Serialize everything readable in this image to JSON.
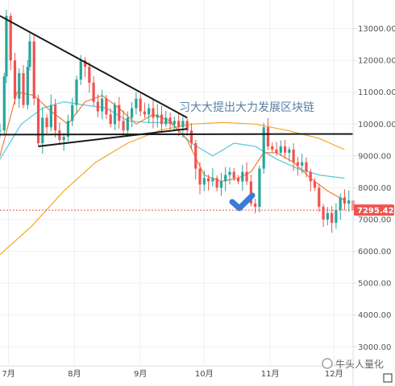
{
  "chart_data": {
    "type": "candlestick",
    "title": "",
    "xlabel": "",
    "ylabel": "",
    "ylim": [
      2400,
      13900
    ],
    "y_ticks": [
      "13000.00",
      "12000.00",
      "11000.00",
      "10000.00",
      "9000.00",
      "8000.00",
      "7000.00",
      "6000.00",
      "5000.00",
      "4000.00",
      "3000.00"
    ],
    "y_tick_values": [
      13000,
      12000,
      11000,
      10000,
      9000,
      8000,
      7000,
      6000,
      5000,
      4000,
      3000
    ],
    "x_ticks": [
      "7月",
      "8月",
      "9月",
      "10月",
      "11月",
      "12月"
    ],
    "x_range_days": [
      0,
      166
    ],
    "x_tick_days": [
      4,
      35,
      66,
      96,
      127,
      157
    ],
    "last_price": "7295.42",
    "last_price_value": 7295.42,
    "candles": [],
    "moving_averages": [
      {
        "name": "",
        "color": "#f5a623",
        "points": [
          [
            0,
            5900
          ],
          [
            15,
            6800
          ],
          [
            30,
            7900
          ],
          [
            45,
            8800
          ],
          [
            60,
            9400
          ],
          [
            75,
            9800
          ],
          [
            90,
            10000
          ],
          [
            105,
            10050
          ],
          [
            120,
            10000
          ],
          [
            135,
            9800
          ],
          [
            150,
            9550
          ],
          [
            162,
            9200
          ]
        ]
      },
      {
        "name": "",
        "color": "#58c7e0",
        "points": [
          [
            0,
            8900
          ],
          [
            10,
            10000
          ],
          [
            20,
            10500
          ],
          [
            30,
            10700
          ],
          [
            40,
            10600
          ],
          [
            50,
            10500
          ],
          [
            60,
            10100
          ],
          [
            70,
            10050
          ],
          [
            80,
            10050
          ],
          [
            90,
            9400
          ],
          [
            100,
            9000
          ],
          [
            110,
            9400
          ],
          [
            120,
            9300
          ],
          [
            130,
            8900
          ],
          [
            140,
            8600
          ],
          [
            150,
            8400
          ],
          [
            162,
            8300
          ]
        ]
      },
      {
        "name": "",
        "color": "#ef7d2e",
        "points": [
          [
            0,
            9000
          ],
          [
            8,
            11000
          ],
          [
            16,
            10900
          ],
          [
            24,
            10400
          ],
          [
            32,
            10000
          ],
          [
            40,
            10700
          ],
          [
            48,
            10900
          ],
          [
            56,
            10500
          ],
          [
            64,
            10000
          ],
          [
            72,
            10300
          ],
          [
            80,
            10100
          ],
          [
            88,
            9500
          ],
          [
            96,
            8400
          ],
          [
            104,
            8200
          ],
          [
            112,
            8300
          ],
          [
            118,
            8500
          ],
          [
            124,
            9100
          ],
          [
            130,
            9100
          ],
          [
            138,
            8800
          ],
          [
            146,
            8300
          ],
          [
            154,
            7900
          ],
          [
            162,
            7600
          ]
        ]
      }
    ],
    "trendlines": [
      {
        "from": [
          0,
          13400
        ],
        "to": [
          88,
          10200
        ]
      },
      {
        "from": [
          18,
          9300
        ],
        "to": [
          88,
          9850
        ]
      },
      {
        "from": [
          0,
          9670
        ],
        "to": [
          166,
          9690
        ]
      }
    ],
    "annotation": "习大大提出大力发展区块链",
    "watermark": "牛头人量化",
    "colors": {
      "up": "#26a69a",
      "down": "#ef5350",
      "grid": "#eef0f3",
      "axis": "#d8dce3",
      "price_tag": "#ef5350",
      "check": "#3a7bd5"
    }
  }
}
